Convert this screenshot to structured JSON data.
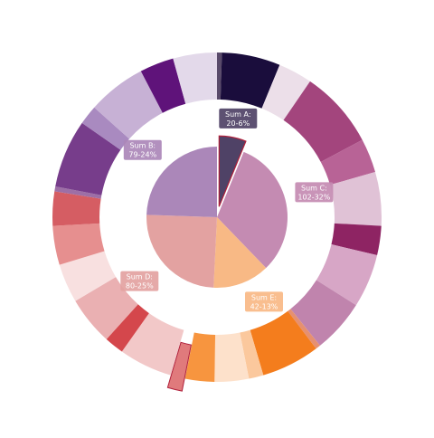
{
  "chart_data": {
    "type": "pie",
    "subtype": "nested-donut",
    "title": "",
    "legend": "none",
    "inner": [
      {
        "label": "Sum A:",
        "value_text": "20-6%",
        "value": 20,
        "color": "#4f4266",
        "exploded": true
      },
      {
        "label": "Sum C:",
        "value_text": "102-32%",
        "value": 102,
        "color": "#c48bb2"
      },
      {
        "label": "Sum E:",
        "value_text": "42-13%",
        "value": 42,
        "color": "#f8b985"
      },
      {
        "label": "Sum D:",
        "value_text": "80-25%",
        "value": 80,
        "color": "#e3a2a1"
      },
      {
        "label": "Sum B:",
        "value_text": "79-24%",
        "value": 79,
        "color": "#ab87b9"
      }
    ],
    "outer": [
      {
        "value": 1,
        "color": "#594a6a"
      },
      {
        "value": 12,
        "color": "#1a0d3c"
      },
      {
        "value": 7,
        "color": "#ecdfe9"
      },
      {
        "value": 16,
        "color": "#a3457d"
      },
      {
        "value": 7,
        "color": "#b86396"
      },
      {
        "value": 11,
        "color": "#e0c2d6"
      },
      {
        "value": 6,
        "color": "#8e2463"
      },
      {
        "value": 11,
        "color": "#d7a6c6"
      },
      {
        "value": 11,
        "color": "#c084ad"
      },
      {
        "value": 1,
        "color": "#e69070"
      },
      {
        "value": 12,
        "color": "#f47d1d"
      },
      {
        "value": 3,
        "color": "#fbc89d"
      },
      {
        "value": 7,
        "color": "#fde1cb"
      },
      {
        "value": 6,
        "color": "#f7953f"
      },
      {
        "value": 3,
        "color": "#e07a7c",
        "exploded": true
      },
      {
        "value": 11,
        "color": "#f2c8c8"
      },
      {
        "value": 4,
        "color": "#d4474c"
      },
      {
        "value": 10,
        "color": "#eab0b2"
      },
      {
        "value": 8,
        "color": "#f8e0e0"
      },
      {
        "value": 8,
        "color": "#e68f8f"
      },
      {
        "value": 7,
        "color": "#d55d63"
      },
      {
        "value": 1,
        "color": "#9d6fa6"
      },
      {
        "value": 14,
        "color": "#773d8b"
      },
      {
        "value": 4,
        "color": "#a98ac0"
      },
      {
        "value": 12,
        "color": "#c7b1d5"
      },
      {
        "value": 7,
        "color": "#5f137a"
      },
      {
        "value": 9,
        "color": "#e3d9ea"
      }
    ]
  }
}
